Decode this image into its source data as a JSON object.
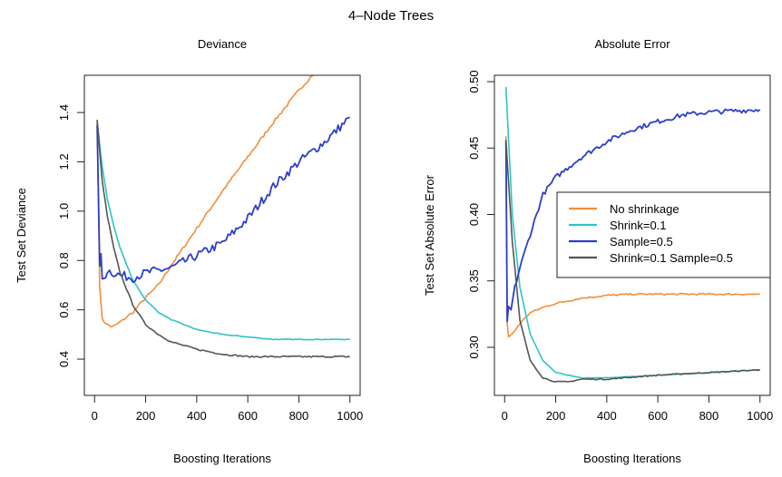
{
  "figure_title": "4–Node Trees",
  "chart_data": [
    {
      "type": "line",
      "title": "Deviance",
      "xlabel": "Boosting Iterations",
      "ylabel": "Test Set Deviance",
      "xlim": [
        -40,
        1040
      ],
      "ylim": [
        0.253,
        1.551
      ],
      "xticks": [
        0,
        200,
        400,
        600,
        800,
        1000
      ],
      "xtick_labels": [
        "0",
        "200",
        "400",
        "600",
        "800",
        "1000"
      ],
      "yticks": [
        0.4,
        0.6,
        0.8,
        1.0,
        1.2,
        1.4
      ],
      "ytick_labels": [
        "0.4",
        "0.6",
        "0.8",
        "1.0",
        "1.2",
        "1.4"
      ],
      "grid": false,
      "series": [
        {
          "name": "No shrinkage",
          "color": "#F28E3A",
          "x": [
            10,
            20,
            30,
            50,
            70,
            100,
            150,
            200,
            250,
            300,
            400,
            500,
            600,
            700,
            800,
            860
          ],
          "y": [
            1.37,
            0.7,
            0.56,
            0.54,
            0.53,
            0.55,
            0.59,
            0.65,
            0.7,
            0.78,
            0.93,
            1.08,
            1.22,
            1.36,
            1.49,
            1.56
          ]
        },
        {
          "name": "Shrink=0.1",
          "color": "#2EC4C4",
          "x": [
            10,
            30,
            50,
            75,
            100,
            150,
            200,
            250,
            300,
            400,
            500,
            600,
            700,
            800,
            1000
          ],
          "y": [
            1.36,
            1.18,
            1.05,
            0.94,
            0.85,
            0.72,
            0.64,
            0.59,
            0.56,
            0.52,
            0.5,
            0.49,
            0.48,
            0.48,
            0.48
          ]
        },
        {
          "name": "Sample=0.5",
          "color": "#2C3FC8",
          "x": [
            10,
            20,
            25,
            30,
            50,
            100,
            150,
            200,
            300,
            400,
            500,
            600,
            700,
            800,
            900,
            1000
          ],
          "y": [
            1.35,
            0.76,
            0.84,
            0.71,
            0.76,
            0.74,
            0.73,
            0.75,
            0.77,
            0.82,
            0.87,
            0.97,
            1.1,
            1.2,
            1.28,
            1.38
          ]
        },
        {
          "name": "Shrink=0.1 Sample=0.5",
          "color": "#555555",
          "x": [
            10,
            30,
            50,
            75,
            100,
            150,
            200,
            250,
            300,
            400,
            500,
            600,
            800,
            1000
          ],
          "y": [
            1.37,
            1.12,
            0.98,
            0.85,
            0.75,
            0.62,
            0.54,
            0.5,
            0.47,
            0.44,
            0.42,
            0.41,
            0.41,
            0.41
          ]
        }
      ]
    },
    {
      "type": "line",
      "title": "Absolute Error",
      "xlabel": "Boosting Iterations",
      "ylabel": "Test Set Absolute Error",
      "xlim": [
        -40,
        1040
      ],
      "ylim": [
        0.2638,
        0.5048
      ],
      "xticks": [
        0,
        200,
        400,
        600,
        800,
        1000
      ],
      "xtick_labels": [
        "0",
        "200",
        "400",
        "600",
        "800",
        "1000"
      ],
      "yticks": [
        0.3,
        0.35,
        0.4,
        0.45,
        0.5
      ],
      "ytick_labels": [
        "0.30",
        "0.35",
        "0.40",
        "0.45",
        "0.50"
      ],
      "grid": false,
      "legend": "center-right",
      "series": [
        {
          "name": "No shrinkage",
          "color": "#F28E3A",
          "x": [
            5,
            10,
            15,
            30,
            60,
            100,
            150,
            200,
            300,
            400,
            500,
            1000
          ],
          "y": [
            0.459,
            0.318,
            0.308,
            0.31,
            0.318,
            0.326,
            0.33,
            0.333,
            0.337,
            0.339,
            0.34,
            0.34
          ]
        },
        {
          "name": "Shrink=0.1",
          "color": "#2EC4C4",
          "x": [
            5,
            30,
            60,
            100,
            150,
            200,
            300,
            400,
            600,
            800,
            1000
          ],
          "y": [
            0.496,
            0.4,
            0.345,
            0.31,
            0.29,
            0.281,
            0.277,
            0.277,
            0.279,
            0.281,
            0.283
          ]
        },
        {
          "name": "Sample=0.5",
          "color": "#2C3FC8",
          "x": [
            5,
            10,
            15,
            25,
            40,
            60,
            100,
            150,
            200,
            300,
            400,
            500,
            600,
            700,
            800,
            1000
          ],
          "y": [
            0.456,
            0.318,
            0.33,
            0.328,
            0.345,
            0.36,
            0.385,
            0.415,
            0.428,
            0.443,
            0.455,
            0.464,
            0.47,
            0.475,
            0.477,
            0.479
          ]
        },
        {
          "name": "Shrink=0.1 Sample=0.5",
          "color": "#555555",
          "x": [
            5,
            30,
            60,
            100,
            150,
            200,
            250,
            300,
            400,
            600,
            800,
            1000
          ],
          "y": [
            0.456,
            0.38,
            0.32,
            0.29,
            0.277,
            0.274,
            0.274,
            0.276,
            0.276,
            0.279,
            0.281,
            0.283
          ]
        }
      ]
    }
  ]
}
